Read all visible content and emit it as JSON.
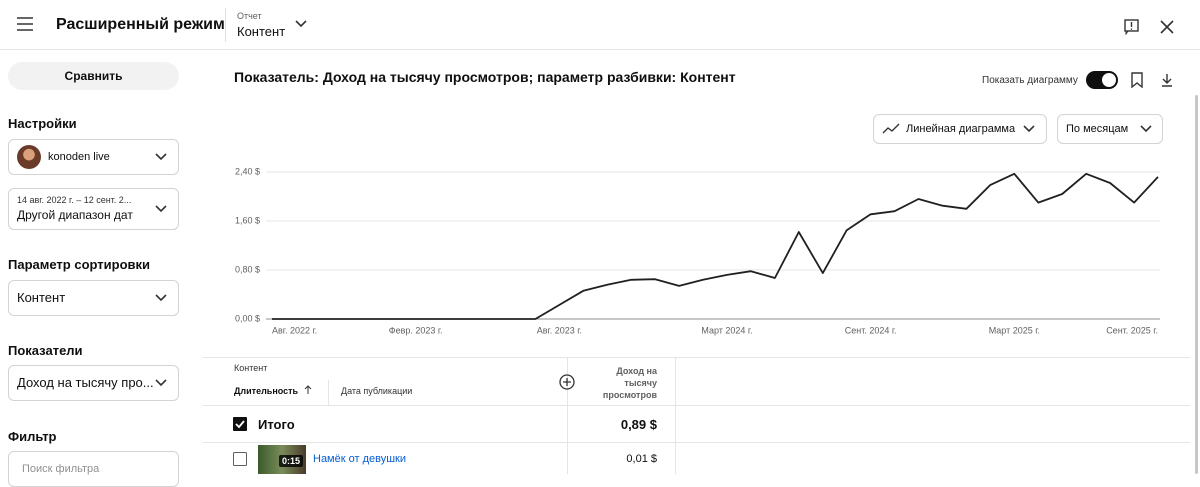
{
  "header": {
    "title": "Расширенный режим",
    "report_label": "Отчет",
    "report_value": "Контент"
  },
  "sidebar": {
    "compare_button": "Сравнить",
    "settings_label": "Настройки",
    "channel": "konoden live",
    "date_range": "14 авг. 2022 г. – 12 сент. 2...",
    "date_preset": "Другой диапазон дат",
    "sort_label": "Параметр сортировки",
    "sort_value": "Контент",
    "metrics_label": "Показатели",
    "metrics_value": "Доход на тысячу про...",
    "filter_label": "Фильтр",
    "filter_placeholder": "Поиск фильтра"
  },
  "toolbar": {
    "heading": "Показатель: Доход на тысячу просмотров; параметр разбивки: Контент",
    "show_chart": "Показать диаграмму",
    "chart_type": "Линейная диаграмма",
    "period": "По месяцам"
  },
  "chart_data": {
    "type": "line",
    "color": "#202020",
    "grid": true,
    "categories": [
      "Авг. 2022 г.",
      null,
      null,
      null,
      null,
      null,
      "Февр. 2023 г.",
      null,
      null,
      null,
      null,
      null,
      "Авг. 2023 г.",
      null,
      null,
      null,
      null,
      null,
      null,
      "Март 2024 г.",
      null,
      null,
      null,
      null,
      null,
      "Сент. 2024 г.",
      null,
      null,
      null,
      null,
      null,
      "Март 2025 г.",
      null,
      null,
      null,
      null,
      null,
      "Сент. 2025 г."
    ],
    "values": [
      0,
      0,
      0,
      0,
      0,
      0,
      0,
      0,
      0,
      0,
      0,
      0,
      0.23,
      0.46,
      0.56,
      0.64,
      0.65,
      0.54,
      0.64,
      0.72,
      0.78,
      0.67,
      1.42,
      0.75,
      1.45,
      1.71,
      1.76,
      1.96,
      1.85,
      1.8,
      2.19,
      2.37,
      1.9,
      2.04,
      2.37,
      2.22,
      1.9,
      2.32
    ],
    "ylim": [
      0,
      2.4
    ],
    "yticks": [
      {
        "value": 0,
        "label": "0,00 $"
      },
      {
        "value": 0.8,
        "label": "0,80 $"
      },
      {
        "value": 1.6,
        "label": "1,60 $"
      },
      {
        "value": 2.4,
        "label": "2,40 $"
      }
    ]
  },
  "table": {
    "group_label": "Контент",
    "columns": [
      "Длительность",
      "Дата публикации",
      "Доход на тысячу просмотров"
    ],
    "rows": [
      {
        "title": "Итого",
        "value": "0,89 $"
      },
      {
        "duration": "0:15",
        "title": "Намёк от девушки",
        "value": "0,01 $"
      }
    ]
  }
}
